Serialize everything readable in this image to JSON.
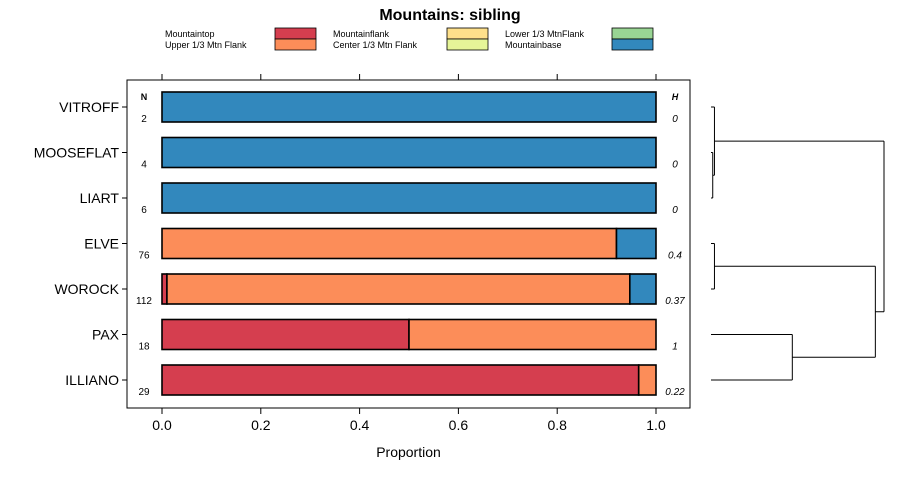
{
  "chart_data": {
    "type": "bar",
    "stacked": true,
    "orientation": "horizontal",
    "title": "Mountains: sibling",
    "xlabel": "Proportion",
    "ylabel": "",
    "xlim": [
      0,
      1
    ],
    "x_ticks": [
      "0.0",
      "0.2",
      "0.4",
      "0.6",
      "0.8",
      "1.0"
    ],
    "x_tick_values": [
      0,
      0.2,
      0.4,
      0.6,
      0.8,
      1.0
    ],
    "n_header": "N",
    "h_header": "H",
    "legend": [
      {
        "name": "Mountaintop",
        "color": "#D53E4F"
      },
      {
        "name": "Upper 1/3 Mtn Flank",
        "color": "#FC8D59"
      },
      {
        "name": "Mountainflank",
        "color": "#FEE08B"
      },
      {
        "name": "Center 1/3 Mtn Flank",
        "color": "#E6F598"
      },
      {
        "name": "Lower 1/3 MtnFlank",
        "color": "#99D594"
      },
      {
        "name": "Mountainbase",
        "color": "#3288BD"
      }
    ],
    "categories": [
      "VITROFF",
      "MOOSEFLAT",
      "LIART",
      "ELVE",
      "WOROCK",
      "PAX",
      "ILLIANO"
    ],
    "n_values": [
      "2",
      "4",
      "6",
      "76",
      "112",
      "18",
      "29"
    ],
    "h_values": [
      "0",
      "0",
      "0",
      "0.4",
      "0.37",
      "1",
      "0.22"
    ],
    "series": [
      {
        "name": "Mountaintop",
        "values": [
          0,
          0,
          0,
          0,
          0.01,
          0.5,
          0.965
        ]
      },
      {
        "name": "Upper 1/3 Mtn Flank",
        "values": [
          0,
          0,
          0,
          0.92,
          0.937,
          0.5,
          0.035
        ]
      },
      {
        "name": "Mountainflank",
        "values": [
          0,
          0,
          0,
          0,
          0,
          0,
          0
        ]
      },
      {
        "name": "Center 1/3 Mtn Flank",
        "values": [
          0,
          0,
          0,
          0,
          0,
          0,
          0
        ]
      },
      {
        "name": "Lower 1/3 MtnFlank",
        "values": [
          0,
          0,
          0,
          0,
          0,
          0,
          0
        ]
      },
      {
        "name": "Mountainbase",
        "values": [
          1,
          1,
          1,
          0.08,
          0.053,
          0,
          0
        ]
      }
    ],
    "dendrogram": {
      "type": "hierarchical-clustering",
      "merges": [
        {
          "left": "MOOSEFLAT",
          "right": "LIART",
          "height": 0.01
        },
        {
          "left": "VITROFF",
          "right": "MOOSEFLAT+LIART",
          "height": 0.02
        },
        {
          "left": "ELVE",
          "right": "WOROCK",
          "height": 0.02
        },
        {
          "left": "PAX",
          "right": "ILLIANO",
          "height": 0.47
        },
        {
          "left": "ELVE+WOROCK",
          "right": "PAX+ILLIANO",
          "height": 0.95
        },
        {
          "left": "VITROFF+MOOSEFLAT+LIART",
          "right": "ELVE+WOROCK+PAX+ILLIANO",
          "height": 1.0
        }
      ]
    }
  }
}
